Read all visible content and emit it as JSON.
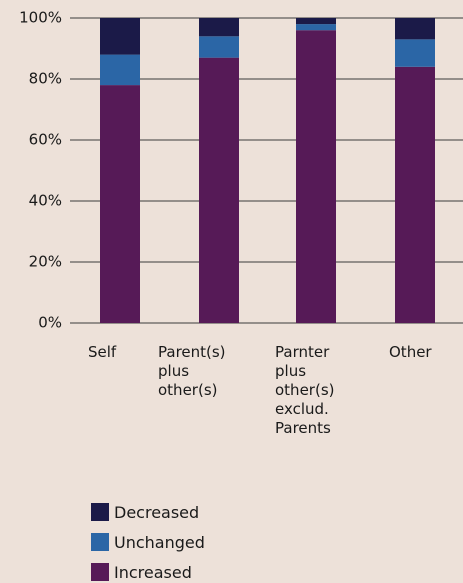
{
  "chart_data": {
    "type": "stacked_bar",
    "categories": [
      "Self",
      "Parent(s) plus other(s)",
      "Parnter plus other(s) exclud. Parents",
      "Other"
    ],
    "series": [
      {
        "name": "Increased",
        "color": "#561a57",
        "values": [
          78,
          87,
          96,
          84
        ]
      },
      {
        "name": "Unchanged",
        "color": "#2b66a6",
        "values": [
          10,
          7,
          2,
          9
        ]
      },
      {
        "name": "Decreased",
        "color": "#1b1a48",
        "values": [
          12,
          6,
          2,
          7
        ]
      }
    ],
    "ylim": [
      0,
      100
    ],
    "yticks": [
      {
        "value": 0,
        "label": "0%"
      },
      {
        "value": 20,
        "label": "20%"
      },
      {
        "value": 40,
        "label": "40%"
      },
      {
        "value": 60,
        "label": "60%"
      },
      {
        "value": 80,
        "label": "80%"
      },
      {
        "value": 100,
        "label": "100%"
      }
    ],
    "grid": true
  }
}
